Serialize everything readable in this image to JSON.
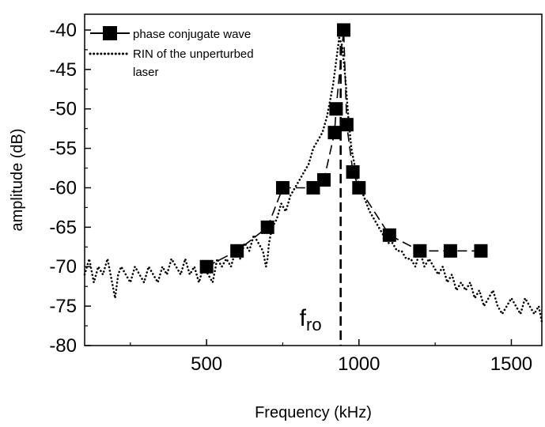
{
  "chart_data": {
    "type": "line",
    "xlabel": "Frequency (kHz)",
    "ylabel": "amplitude (dB)",
    "xlim": [
      100,
      1600
    ],
    "ylim": [
      -80,
      -38
    ],
    "x_ticks": [
      500,
      1000,
      1500
    ],
    "y_ticks": [
      -80,
      -75,
      -70,
      -65,
      -60,
      -55,
      -50,
      -45,
      -40
    ],
    "grid": false,
    "legend_position": "top-left",
    "series": [
      {
        "name": "phase conjugate wave",
        "style": "dashed line with filled square markers",
        "color": "#000000",
        "x": [
          500,
          600,
          700,
          750,
          850,
          885,
          920,
          925,
          950,
          960,
          980,
          1000,
          1100,
          1200,
          1300,
          1400
        ],
        "y": [
          -70,
          -68,
          -65,
          -60,
          -60,
          -59,
          -53,
          -50,
          -40,
          -52,
          -58,
          -60,
          -66,
          -68,
          -68,
          -68
        ]
      },
      {
        "name": "RIN of the unperturbed laser",
        "style": "dotted line",
        "color": "#000000",
        "x": [
          100,
          115,
          130,
          145,
          160,
          175,
          190,
          200,
          210,
          220,
          235,
          250,
          265,
          280,
          295,
          310,
          325,
          340,
          355,
          370,
          385,
          400,
          415,
          430,
          445,
          460,
          475,
          490,
          505,
          520,
          535,
          550,
          565,
          580,
          595,
          610,
          625,
          640,
          655,
          670,
          685,
          695,
          700,
          705,
          715,
          730,
          745,
          760,
          775,
          790,
          805,
          820,
          835,
          850,
          865,
          880,
          895,
          905,
          915,
          925,
          935,
          945,
          955,
          965,
          975,
          985,
          995,
          1005,
          1015,
          1025,
          1035,
          1050,
          1065,
          1080,
          1095,
          1110,
          1125,
          1140,
          1155,
          1170,
          1185,
          1200,
          1215,
          1230,
          1245,
          1260,
          1275,
          1290,
          1305,
          1320,
          1335,
          1350,
          1365,
          1380,
          1395,
          1410,
          1425,
          1440,
          1455,
          1470,
          1485,
          1500,
          1515,
          1530,
          1545,
          1560,
          1575,
          1590,
          1600
        ],
        "y": [
          -71,
          -69,
          -72,
          -70,
          -71,
          -69,
          -72,
          -74,
          -71,
          -70,
          -71,
          -72,
          -70,
          -71,
          -72,
          -70,
          -71,
          -72,
          -70,
          -71,
          -69,
          -70,
          -71,
          -69,
          -71,
          -70,
          -72,
          -70,
          -71,
          -72,
          -69,
          -70,
          -69,
          -70,
          -68,
          -69,
          -67,
          -68,
          -66,
          -67,
          -68,
          -70,
          -69,
          -67,
          -65,
          -64,
          -62,
          -63,
          -61,
          -60,
          -59,
          -58,
          -57,
          -55,
          -54,
          -53,
          -51,
          -49,
          -47,
          -44,
          -41,
          -42,
          -46,
          -51,
          -55,
          -57,
          -59,
          -60,
          -61,
          -62,
          -63,
          -64,
          -65,
          -66,
          -67,
          -67,
          -68,
          -68,
          -69,
          -69,
          -70,
          -68,
          -70,
          -69,
          -70,
          -71,
          -70,
          -72,
          -71,
          -73,
          -72,
          -73,
          -72,
          -74,
          -73,
          -75,
          -74,
          -73,
          -75,
          -76,
          -75,
          -74,
          -75,
          -76,
          -74,
          -75,
          -76,
          -75,
          -77
        ]
      }
    ],
    "annotations": [
      {
        "text_main": "f",
        "text_sub": "ro",
        "x": 940,
        "y": -76.5,
        "vertical_dashed_line_at_x": 940
      }
    ]
  }
}
